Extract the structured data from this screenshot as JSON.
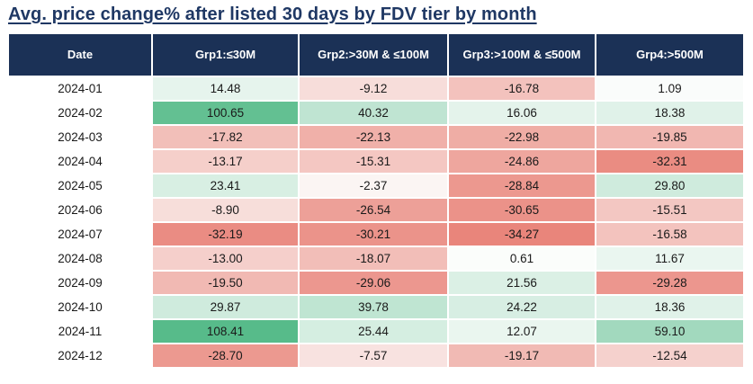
{
  "title": "Avg. price change% after listed 30 days by FDV tier by month",
  "colors": {
    "title_text": "#1F3864",
    "header_bg": "#1B3156",
    "header_text": "#FFFFFF",
    "cell_text": "#1A1A1A",
    "positive_max_color": "#57BB8A",
    "negative_max_color": "#E9857B",
    "neutral_color": "#FCFDFC",
    "date_column_bg": "#FFFFFF"
  },
  "chart_data": {
    "type": "heatmap",
    "title": "Avg. price change% after listed 30 days by FDV tier by month",
    "date_header": "Date",
    "columns": [
      "Grp1:≤30M",
      "Grp2:>30M & ≤100M",
      "Grp3:>100M & ≤500M",
      "Grp4:>500M"
    ],
    "dates": [
      "2024-01",
      "2024-02",
      "2024-03",
      "2024-04",
      "2024-05",
      "2024-06",
      "2024-07",
      "2024-08",
      "2024-09",
      "2024-10",
      "2024-11",
      "2024-12"
    ],
    "values": [
      [
        14.48,
        -9.12,
        -16.78,
        1.09
      ],
      [
        100.65,
        40.32,
        16.06,
        18.38
      ],
      [
        -17.82,
        -22.13,
        -22.98,
        -19.85
      ],
      [
        -13.17,
        -15.31,
        -24.86,
        -32.31
      ],
      [
        23.41,
        -2.37,
        -28.84,
        29.8
      ],
      [
        -8.9,
        -26.54,
        -30.65,
        -15.51
      ],
      [
        -32.19,
        -30.21,
        -34.27,
        -16.58
      ],
      [
        -13.0,
        -18.07,
        0.61,
        11.67
      ],
      [
        -19.5,
        -29.06,
        21.56,
        -29.28
      ],
      [
        29.87,
        39.78,
        24.22,
        18.36
      ],
      [
        108.41,
        25.44,
        12.07,
        59.1
      ],
      [
        -28.7,
        -7.57,
        -19.17,
        -12.54
      ]
    ],
    "value_format": "2dp",
    "scale": {
      "min": -34.27,
      "mid": 0,
      "max": 108.41,
      "min_color": "#E9857B",
      "mid_color": "#FCFDFC",
      "max_color": "#57BB8A"
    },
    "legend": "none",
    "grid": "white 2px gaps between cells"
  }
}
